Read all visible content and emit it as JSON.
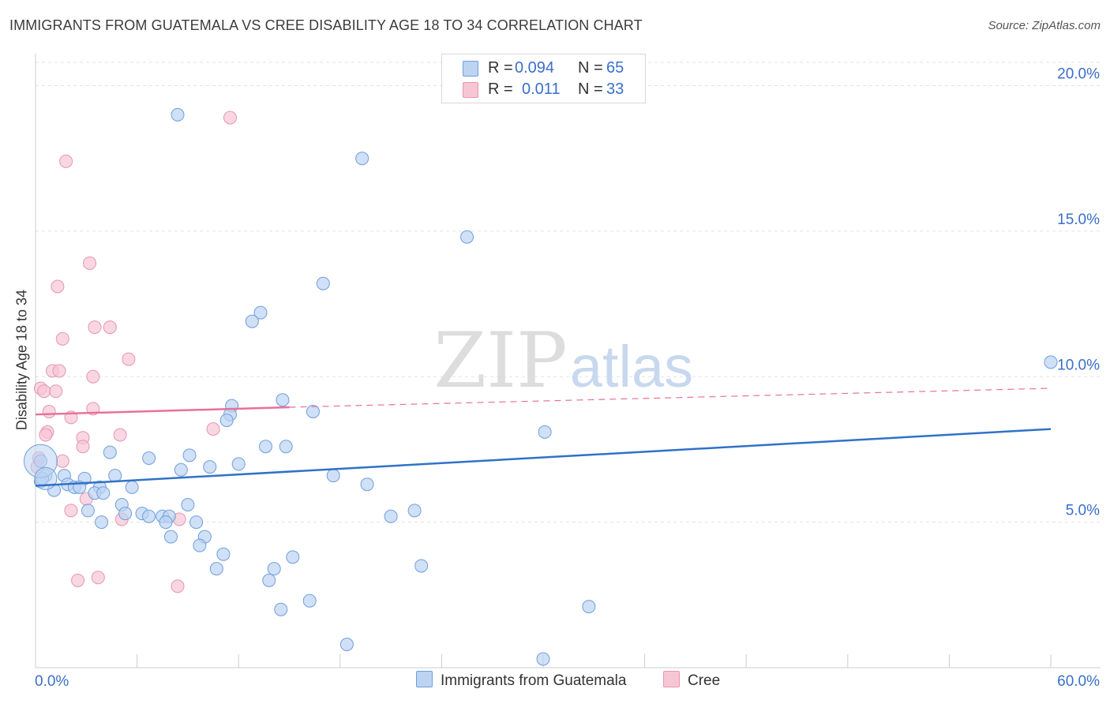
{
  "title": "IMMIGRANTS FROM GUATEMALA VS CREE DISABILITY AGE 18 TO 34 CORRELATION CHART",
  "source": "Source: ZipAtlas.com",
  "watermark": {
    "zip": "ZIP",
    "atlas": "atlas"
  },
  "legend": {
    "r_label": "R =",
    "n_label": "N =",
    "series": [
      {
        "r": "0.094",
        "n": "65"
      },
      {
        "r": "0.011",
        "n": "33"
      }
    ]
  },
  "bottom_legend": [
    "Immigrants from Guatemala",
    "Cree"
  ],
  "chart_data": {
    "type": "scatter",
    "title": "IMMIGRANTS FROM GUATEMALA VS CREE DISABILITY AGE 18 TO 34 CORRELATION CHART",
    "xlabel": "",
    "ylabel": "Disability Age 18 to 34",
    "xlim": [
      0,
      60
    ],
    "ylim": [
      0,
      20.8
    ],
    "x_tick_labels": [
      "0.0%",
      "60.0%"
    ],
    "y_ticks": [
      5,
      10,
      15,
      20
    ],
    "y_tick_labels": [
      "5.0%",
      "10.0%",
      "15.0%",
      "20.0%"
    ],
    "grid": true,
    "colors": {
      "guatemala_fill": "#bcd3f2",
      "guatemala_stroke": "#6f9fdc",
      "guatemala_line": "#2f72c8",
      "cree_fill": "#f7c6d5",
      "cree_stroke": "#e795b0",
      "cree_line": "#e8709a",
      "tick_text": "#3a6fc9"
    },
    "series": [
      {
        "name": "Immigrants from Guatemala",
        "r": 0.094,
        "n": 65,
        "trend": {
          "x": [
            0,
            60
          ],
          "y": [
            6.25,
            8.2
          ]
        },
        "points": [
          [
            8.4,
            19.0
          ],
          [
            19.3,
            17.5
          ],
          [
            25.5,
            14.8
          ],
          [
            17.0,
            13.2
          ],
          [
            13.3,
            12.2
          ],
          [
            12.8,
            11.9
          ],
          [
            60.0,
            10.5
          ],
          [
            14.6,
            9.2
          ],
          [
            11.6,
            9.0
          ],
          [
            16.4,
            8.8
          ],
          [
            11.5,
            8.7
          ],
          [
            11.3,
            8.5
          ],
          [
            30.1,
            8.1
          ],
          [
            13.6,
            7.6
          ],
          [
            14.8,
            7.6
          ],
          [
            4.4,
            7.4
          ],
          [
            9.1,
            7.3
          ],
          [
            6.7,
            7.2
          ],
          [
            0.3,
            7.1
          ],
          [
            12.0,
            7.0
          ],
          [
            10.3,
            6.9
          ],
          [
            8.6,
            6.8
          ],
          [
            0.6,
            6.6
          ],
          [
            1.7,
            6.6
          ],
          [
            2.9,
            6.5
          ],
          [
            4.7,
            6.6
          ],
          [
            17.6,
            6.6
          ],
          [
            0.3,
            6.4
          ],
          [
            1.9,
            6.3
          ],
          [
            2.3,
            6.2
          ],
          [
            3.8,
            6.2
          ],
          [
            5.7,
            6.2
          ],
          [
            19.6,
            6.3
          ],
          [
            1.1,
            6.1
          ],
          [
            3.5,
            6.0
          ],
          [
            5.1,
            5.6
          ],
          [
            9.0,
            5.6
          ],
          [
            3.1,
            5.4
          ],
          [
            22.4,
            5.4
          ],
          [
            21.0,
            5.2
          ],
          [
            5.3,
            5.3
          ],
          [
            6.3,
            5.3
          ],
          [
            6.7,
            5.2
          ],
          [
            7.5,
            5.2
          ],
          [
            7.9,
            5.2
          ],
          [
            3.9,
            5.0
          ],
          [
            7.7,
            5.0
          ],
          [
            9.5,
            5.0
          ],
          [
            10.0,
            4.5
          ],
          [
            8.0,
            4.5
          ],
          [
            9.7,
            4.2
          ],
          [
            11.1,
            3.9
          ],
          [
            15.2,
            3.8
          ],
          [
            22.8,
            3.5
          ],
          [
            10.7,
            3.4
          ],
          [
            14.1,
            3.4
          ],
          [
            13.8,
            3.0
          ],
          [
            16.2,
            2.3
          ],
          [
            14.5,
            2.0
          ],
          [
            32.7,
            2.1
          ],
          [
            18.4,
            0.8
          ],
          [
            30.0,
            0.3
          ],
          [
            0.4,
            6.5
          ],
          [
            2.6,
            6.2
          ],
          [
            4.0,
            6.0
          ]
        ]
      },
      {
        "name": "Cree",
        "r": 0.011,
        "n": 33,
        "trend": {
          "x": [
            0,
            15
          ],
          "y": [
            8.7,
            8.95
          ]
        },
        "trend_dashed": {
          "x": [
            15,
            60
          ],
          "y": [
            8.95,
            9.6
          ]
        },
        "points": [
          [
            11.5,
            18.9
          ],
          [
            1.8,
            17.4
          ],
          [
            3.2,
            13.9
          ],
          [
            1.3,
            13.1
          ],
          [
            1.6,
            11.3
          ],
          [
            3.5,
            11.7
          ],
          [
            4.4,
            11.7
          ],
          [
            5.5,
            10.6
          ],
          [
            1.0,
            10.2
          ],
          [
            1.4,
            10.2
          ],
          [
            3.4,
            10.0
          ],
          [
            0.3,
            9.6
          ],
          [
            0.5,
            9.5
          ],
          [
            1.2,
            9.5
          ],
          [
            3.4,
            8.9
          ],
          [
            0.8,
            8.8
          ],
          [
            2.1,
            8.6
          ],
          [
            10.5,
            8.2
          ],
          [
            0.7,
            8.1
          ],
          [
            0.6,
            8.0
          ],
          [
            5.0,
            8.0
          ],
          [
            2.8,
            7.9
          ],
          [
            2.8,
            7.6
          ],
          [
            0.2,
            7.2
          ],
          [
            1.6,
            7.1
          ],
          [
            0.1,
            6.9
          ],
          [
            3.0,
            5.8
          ],
          [
            2.1,
            5.4
          ],
          [
            5.1,
            5.1
          ],
          [
            8.5,
            5.1
          ],
          [
            2.5,
            3.0
          ],
          [
            3.7,
            3.1
          ],
          [
            8.4,
            2.8
          ]
        ]
      }
    ]
  }
}
